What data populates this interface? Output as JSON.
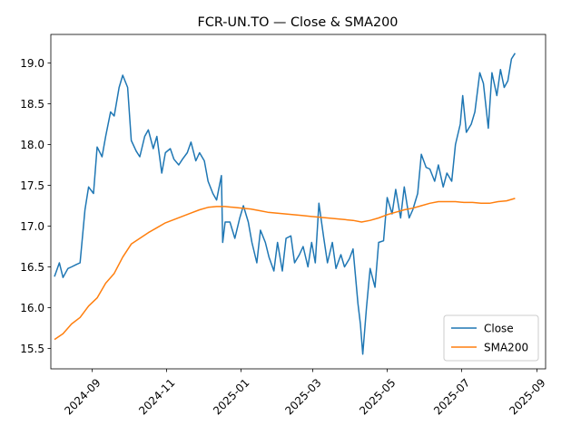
{
  "chart_data": {
    "type": "line",
    "title": "FCR-UN.TO — Close & SMA200",
    "xlabel": "",
    "ylabel": "",
    "x_range": [
      "2024-07-29",
      "2025-09-08"
    ],
    "y_range": [
      15.25,
      19.35
    ],
    "x_ticks": [
      "2024-09",
      "2024-11",
      "2025-01",
      "2025-03",
      "2025-05",
      "2025-07",
      "2025-09"
    ],
    "y_ticks": [
      "15.5",
      "16.0",
      "16.5",
      "17.0",
      "17.5",
      "18.0",
      "18.5",
      "19.0"
    ],
    "grid": false,
    "legend_position": "lower-right",
    "colors": {
      "close": "#1f77b4",
      "sma200": "#ff7f0e"
    },
    "series": [
      {
        "name": "Close",
        "key": "close",
        "points": [
          [
            "2024-08-01",
            16.38
          ],
          [
            "2024-08-05",
            16.55
          ],
          [
            "2024-08-08",
            16.37
          ],
          [
            "2024-08-12",
            16.48
          ],
          [
            "2024-08-15",
            16.5
          ],
          [
            "2024-08-19",
            16.53
          ],
          [
            "2024-08-22",
            16.55
          ],
          [
            "2024-08-26",
            17.2
          ],
          [
            "2024-08-29",
            17.48
          ],
          [
            "2024-09-02",
            17.4
          ],
          [
            "2024-09-05",
            17.97
          ],
          [
            "2024-09-09",
            17.85
          ],
          [
            "2024-09-12",
            18.1
          ],
          [
            "2024-09-16",
            18.4
          ],
          [
            "2024-09-19",
            18.35
          ],
          [
            "2024-09-23",
            18.7
          ],
          [
            "2024-09-26",
            18.85
          ],
          [
            "2024-09-30",
            18.7
          ],
          [
            "2024-10-03",
            18.05
          ],
          [
            "2024-10-07",
            17.92
          ],
          [
            "2024-10-10",
            17.85
          ],
          [
            "2024-10-14",
            18.1
          ],
          [
            "2024-10-17",
            18.18
          ],
          [
            "2024-10-21",
            17.95
          ],
          [
            "2024-10-24",
            18.1
          ],
          [
            "2024-10-28",
            17.65
          ],
          [
            "2024-10-31",
            17.9
          ],
          [
            "2024-11-04",
            17.95
          ],
          [
            "2024-11-07",
            17.82
          ],
          [
            "2024-11-11",
            17.75
          ],
          [
            "2024-11-14",
            17.82
          ],
          [
            "2024-11-18",
            17.9
          ],
          [
            "2024-11-21",
            18.03
          ],
          [
            "2024-11-25",
            17.8
          ],
          [
            "2024-11-28",
            17.9
          ],
          [
            "2024-12-02",
            17.8
          ],
          [
            "2024-12-05",
            17.55
          ],
          [
            "2024-12-09",
            17.4
          ],
          [
            "2024-12-12",
            17.32
          ],
          [
            "2024-12-16",
            17.62
          ],
          [
            "2024-12-17",
            16.8
          ],
          [
            "2024-12-19",
            17.05
          ],
          [
            "2024-12-23",
            17.05
          ],
          [
            "2024-12-27",
            16.85
          ],
          [
            "2024-12-31",
            17.1
          ],
          [
            "2025-01-03",
            17.25
          ],
          [
            "2025-01-07",
            17.05
          ],
          [
            "2025-01-10",
            16.8
          ],
          [
            "2025-01-14",
            16.55
          ],
          [
            "2025-01-17",
            16.95
          ],
          [
            "2025-01-21",
            16.8
          ],
          [
            "2025-01-24",
            16.62
          ],
          [
            "2025-01-28",
            16.45
          ],
          [
            "2025-01-31",
            16.8
          ],
          [
            "2025-02-04",
            16.45
          ],
          [
            "2025-02-07",
            16.85
          ],
          [
            "2025-02-11",
            16.88
          ],
          [
            "2025-02-14",
            16.55
          ],
          [
            "2025-02-18",
            16.65
          ],
          [
            "2025-02-21",
            16.75
          ],
          [
            "2025-02-25",
            16.5
          ],
          [
            "2025-02-28",
            16.8
          ],
          [
            "2025-03-03",
            16.55
          ],
          [
            "2025-03-06",
            17.28
          ],
          [
            "2025-03-10",
            16.85
          ],
          [
            "2025-03-13",
            16.55
          ],
          [
            "2025-03-17",
            16.8
          ],
          [
            "2025-03-20",
            16.48
          ],
          [
            "2025-03-24",
            16.65
          ],
          [
            "2025-03-27",
            16.5
          ],
          [
            "2025-03-31",
            16.6
          ],
          [
            "2025-04-03",
            16.72
          ],
          [
            "2025-04-07",
            16.05
          ],
          [
            "2025-04-09",
            15.8
          ],
          [
            "2025-04-11",
            15.43
          ],
          [
            "2025-04-14",
            16.0
          ],
          [
            "2025-04-17",
            16.48
          ],
          [
            "2025-04-21",
            16.25
          ],
          [
            "2025-04-24",
            16.8
          ],
          [
            "2025-04-28",
            16.82
          ],
          [
            "2025-05-01",
            17.35
          ],
          [
            "2025-05-05",
            17.15
          ],
          [
            "2025-05-08",
            17.45
          ],
          [
            "2025-05-12",
            17.1
          ],
          [
            "2025-05-15",
            17.48
          ],
          [
            "2025-05-19",
            17.1
          ],
          [
            "2025-05-22",
            17.2
          ],
          [
            "2025-05-26",
            17.4
          ],
          [
            "2025-05-29",
            17.88
          ],
          [
            "2025-06-02",
            17.72
          ],
          [
            "2025-06-05",
            17.7
          ],
          [
            "2025-06-09",
            17.55
          ],
          [
            "2025-06-12",
            17.75
          ],
          [
            "2025-06-16",
            17.48
          ],
          [
            "2025-06-19",
            17.65
          ],
          [
            "2025-06-23",
            17.55
          ],
          [
            "2025-06-26",
            18.0
          ],
          [
            "2025-06-30",
            18.25
          ],
          [
            "2025-07-02",
            18.6
          ],
          [
            "2025-07-05",
            18.15
          ],
          [
            "2025-07-09",
            18.25
          ],
          [
            "2025-07-12",
            18.4
          ],
          [
            "2025-07-16",
            18.88
          ],
          [
            "2025-07-19",
            18.75
          ],
          [
            "2025-07-23",
            18.2
          ],
          [
            "2025-07-26",
            18.88
          ],
          [
            "2025-07-30",
            18.6
          ],
          [
            "2025-08-02",
            18.92
          ],
          [
            "2025-08-05",
            18.7
          ],
          [
            "2025-08-08",
            18.78
          ],
          [
            "2025-08-11",
            19.05
          ],
          [
            "2025-08-14",
            19.12
          ]
        ]
      },
      {
        "name": "SMA200",
        "key": "sma200",
        "points": [
          [
            "2024-08-01",
            15.61
          ],
          [
            "2024-08-08",
            15.68
          ],
          [
            "2024-08-15",
            15.8
          ],
          [
            "2024-08-22",
            15.88
          ],
          [
            "2024-08-29",
            16.02
          ],
          [
            "2024-09-05",
            16.12
          ],
          [
            "2024-09-12",
            16.3
          ],
          [
            "2024-09-19",
            16.42
          ],
          [
            "2024-09-26",
            16.62
          ],
          [
            "2024-10-03",
            16.78
          ],
          [
            "2024-10-10",
            16.85
          ],
          [
            "2024-10-17",
            16.92
          ],
          [
            "2024-10-24",
            16.98
          ],
          [
            "2024-10-31",
            17.04
          ],
          [
            "2024-11-07",
            17.08
          ],
          [
            "2024-11-14",
            17.12
          ],
          [
            "2024-11-21",
            17.16
          ],
          [
            "2024-11-28",
            17.2
          ],
          [
            "2024-12-05",
            17.23
          ],
          [
            "2024-12-12",
            17.24
          ],
          [
            "2024-12-19",
            17.24
          ],
          [
            "2024-12-26",
            17.23
          ],
          [
            "2025-01-02",
            17.22
          ],
          [
            "2025-01-09",
            17.21
          ],
          [
            "2025-01-16",
            17.19
          ],
          [
            "2025-01-23",
            17.17
          ],
          [
            "2025-01-30",
            17.16
          ],
          [
            "2025-02-06",
            17.15
          ],
          [
            "2025-02-13",
            17.14
          ],
          [
            "2025-02-20",
            17.13
          ],
          [
            "2025-02-27",
            17.12
          ],
          [
            "2025-03-06",
            17.11
          ],
          [
            "2025-03-13",
            17.1
          ],
          [
            "2025-03-20",
            17.09
          ],
          [
            "2025-03-27",
            17.08
          ],
          [
            "2025-04-03",
            17.07
          ],
          [
            "2025-04-10",
            17.05
          ],
          [
            "2025-04-17",
            17.07
          ],
          [
            "2025-04-24",
            17.1
          ],
          [
            "2025-05-01",
            17.14
          ],
          [
            "2025-05-08",
            17.17
          ],
          [
            "2025-05-15",
            17.2
          ],
          [
            "2025-05-22",
            17.22
          ],
          [
            "2025-05-29",
            17.25
          ],
          [
            "2025-06-05",
            17.28
          ],
          [
            "2025-06-12",
            17.3
          ],
          [
            "2025-06-19",
            17.3
          ],
          [
            "2025-06-26",
            17.3
          ],
          [
            "2025-07-03",
            17.29
          ],
          [
            "2025-07-10",
            17.29
          ],
          [
            "2025-07-17",
            17.28
          ],
          [
            "2025-07-24",
            17.28
          ],
          [
            "2025-07-31",
            17.3
          ],
          [
            "2025-08-07",
            17.31
          ],
          [
            "2025-08-14",
            17.34
          ]
        ]
      }
    ]
  }
}
